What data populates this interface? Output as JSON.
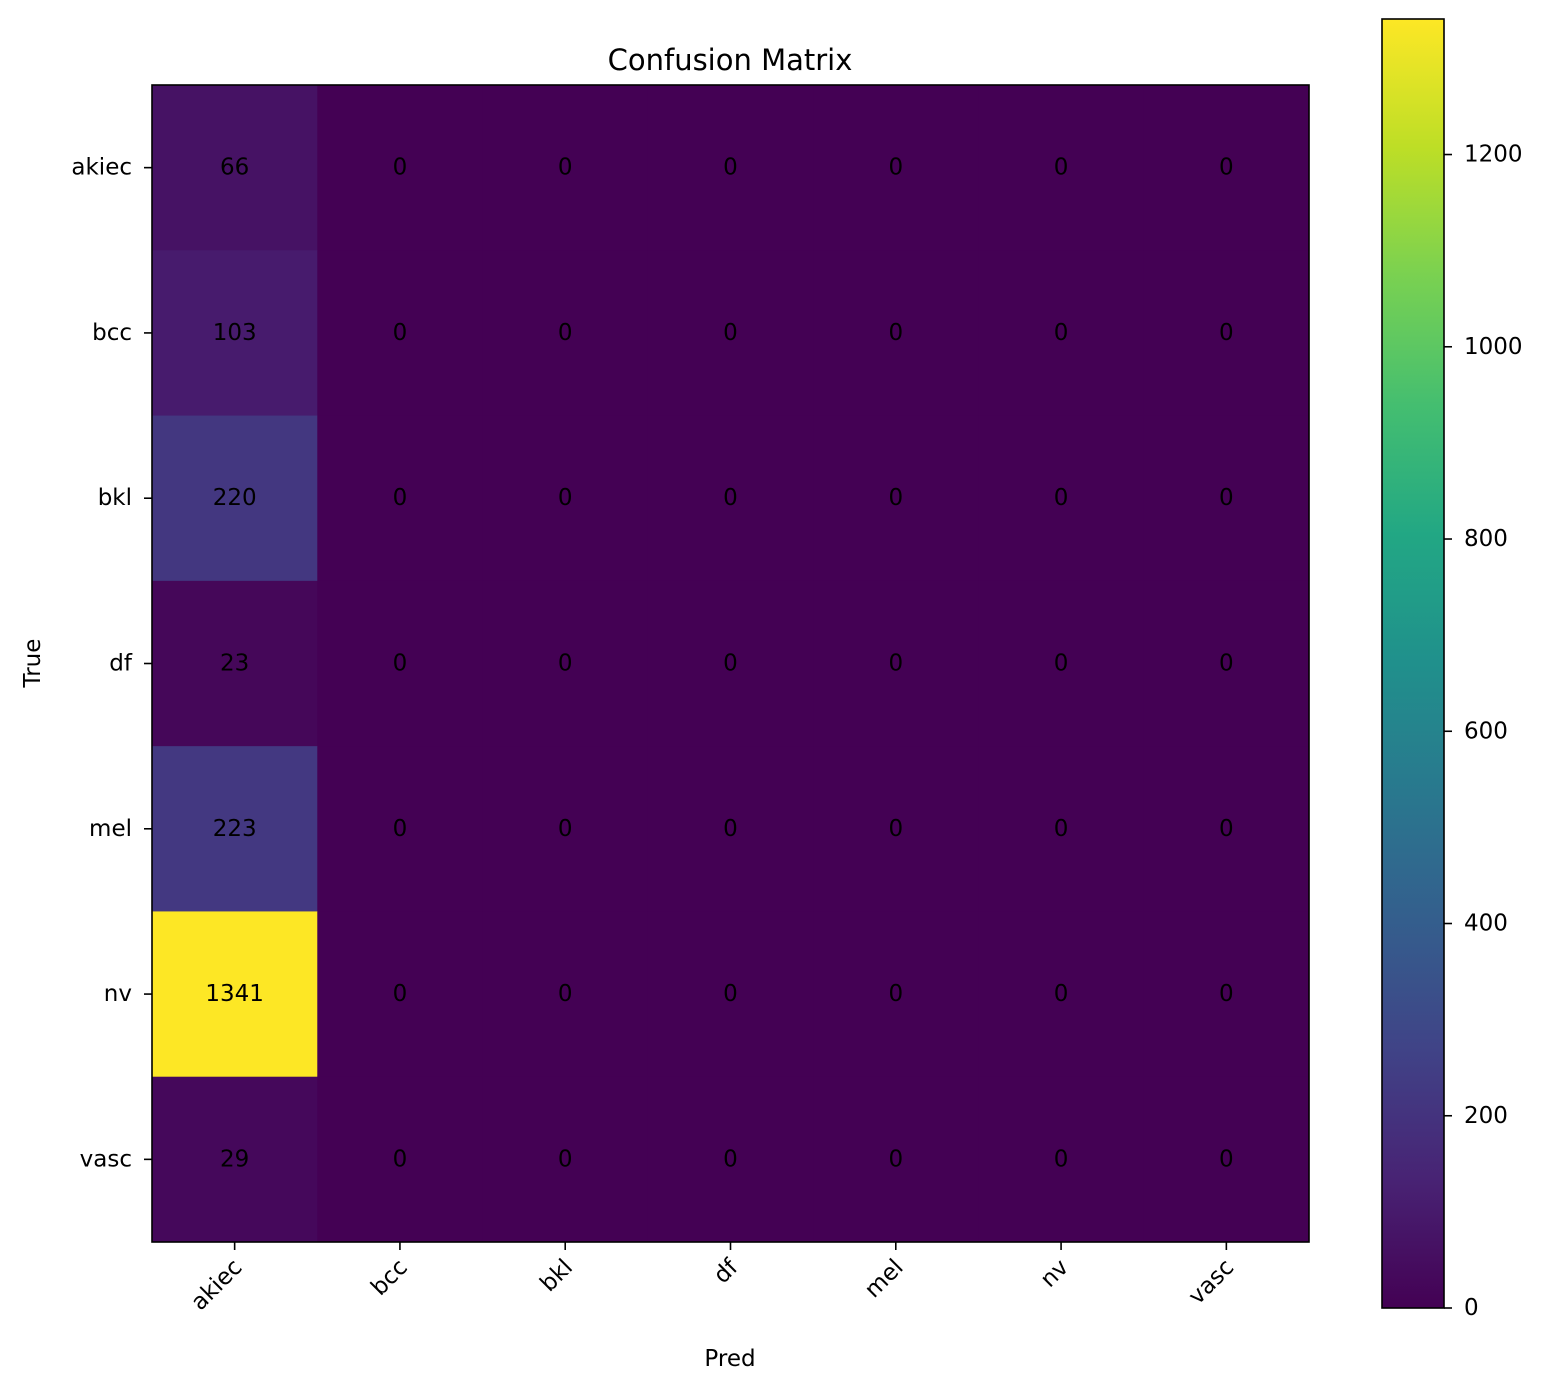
{
  "chart_data": {
    "type": "heatmap",
    "title": "Confusion Matrix",
    "xlabel": "Pred",
    "ylabel": "True",
    "x_categories": [
      "akiec",
      "bcc",
      "bkl",
      "df",
      "mel",
      "nv",
      "vasc"
    ],
    "y_categories": [
      "akiec",
      "bcc",
      "bkl",
      "df",
      "mel",
      "nv",
      "vasc"
    ],
    "values": [
      [
        66,
        0,
        0,
        0,
        0,
        0,
        0
      ],
      [
        103,
        0,
        0,
        0,
        0,
        0,
        0
      ],
      [
        220,
        0,
        0,
        0,
        0,
        0,
        0
      ],
      [
        23,
        0,
        0,
        0,
        0,
        0,
        0
      ],
      [
        223,
        0,
        0,
        0,
        0,
        0,
        0
      ],
      [
        1341,
        0,
        0,
        0,
        0,
        0,
        0
      ],
      [
        29,
        0,
        0,
        0,
        0,
        0,
        0
      ]
    ],
    "colormap": "viridis",
    "colorbar": {
      "range": [
        0,
        1341
      ],
      "ticks": [
        0,
        200,
        400,
        600,
        800,
        1000,
        1200
      ]
    },
    "grid": false
  }
}
